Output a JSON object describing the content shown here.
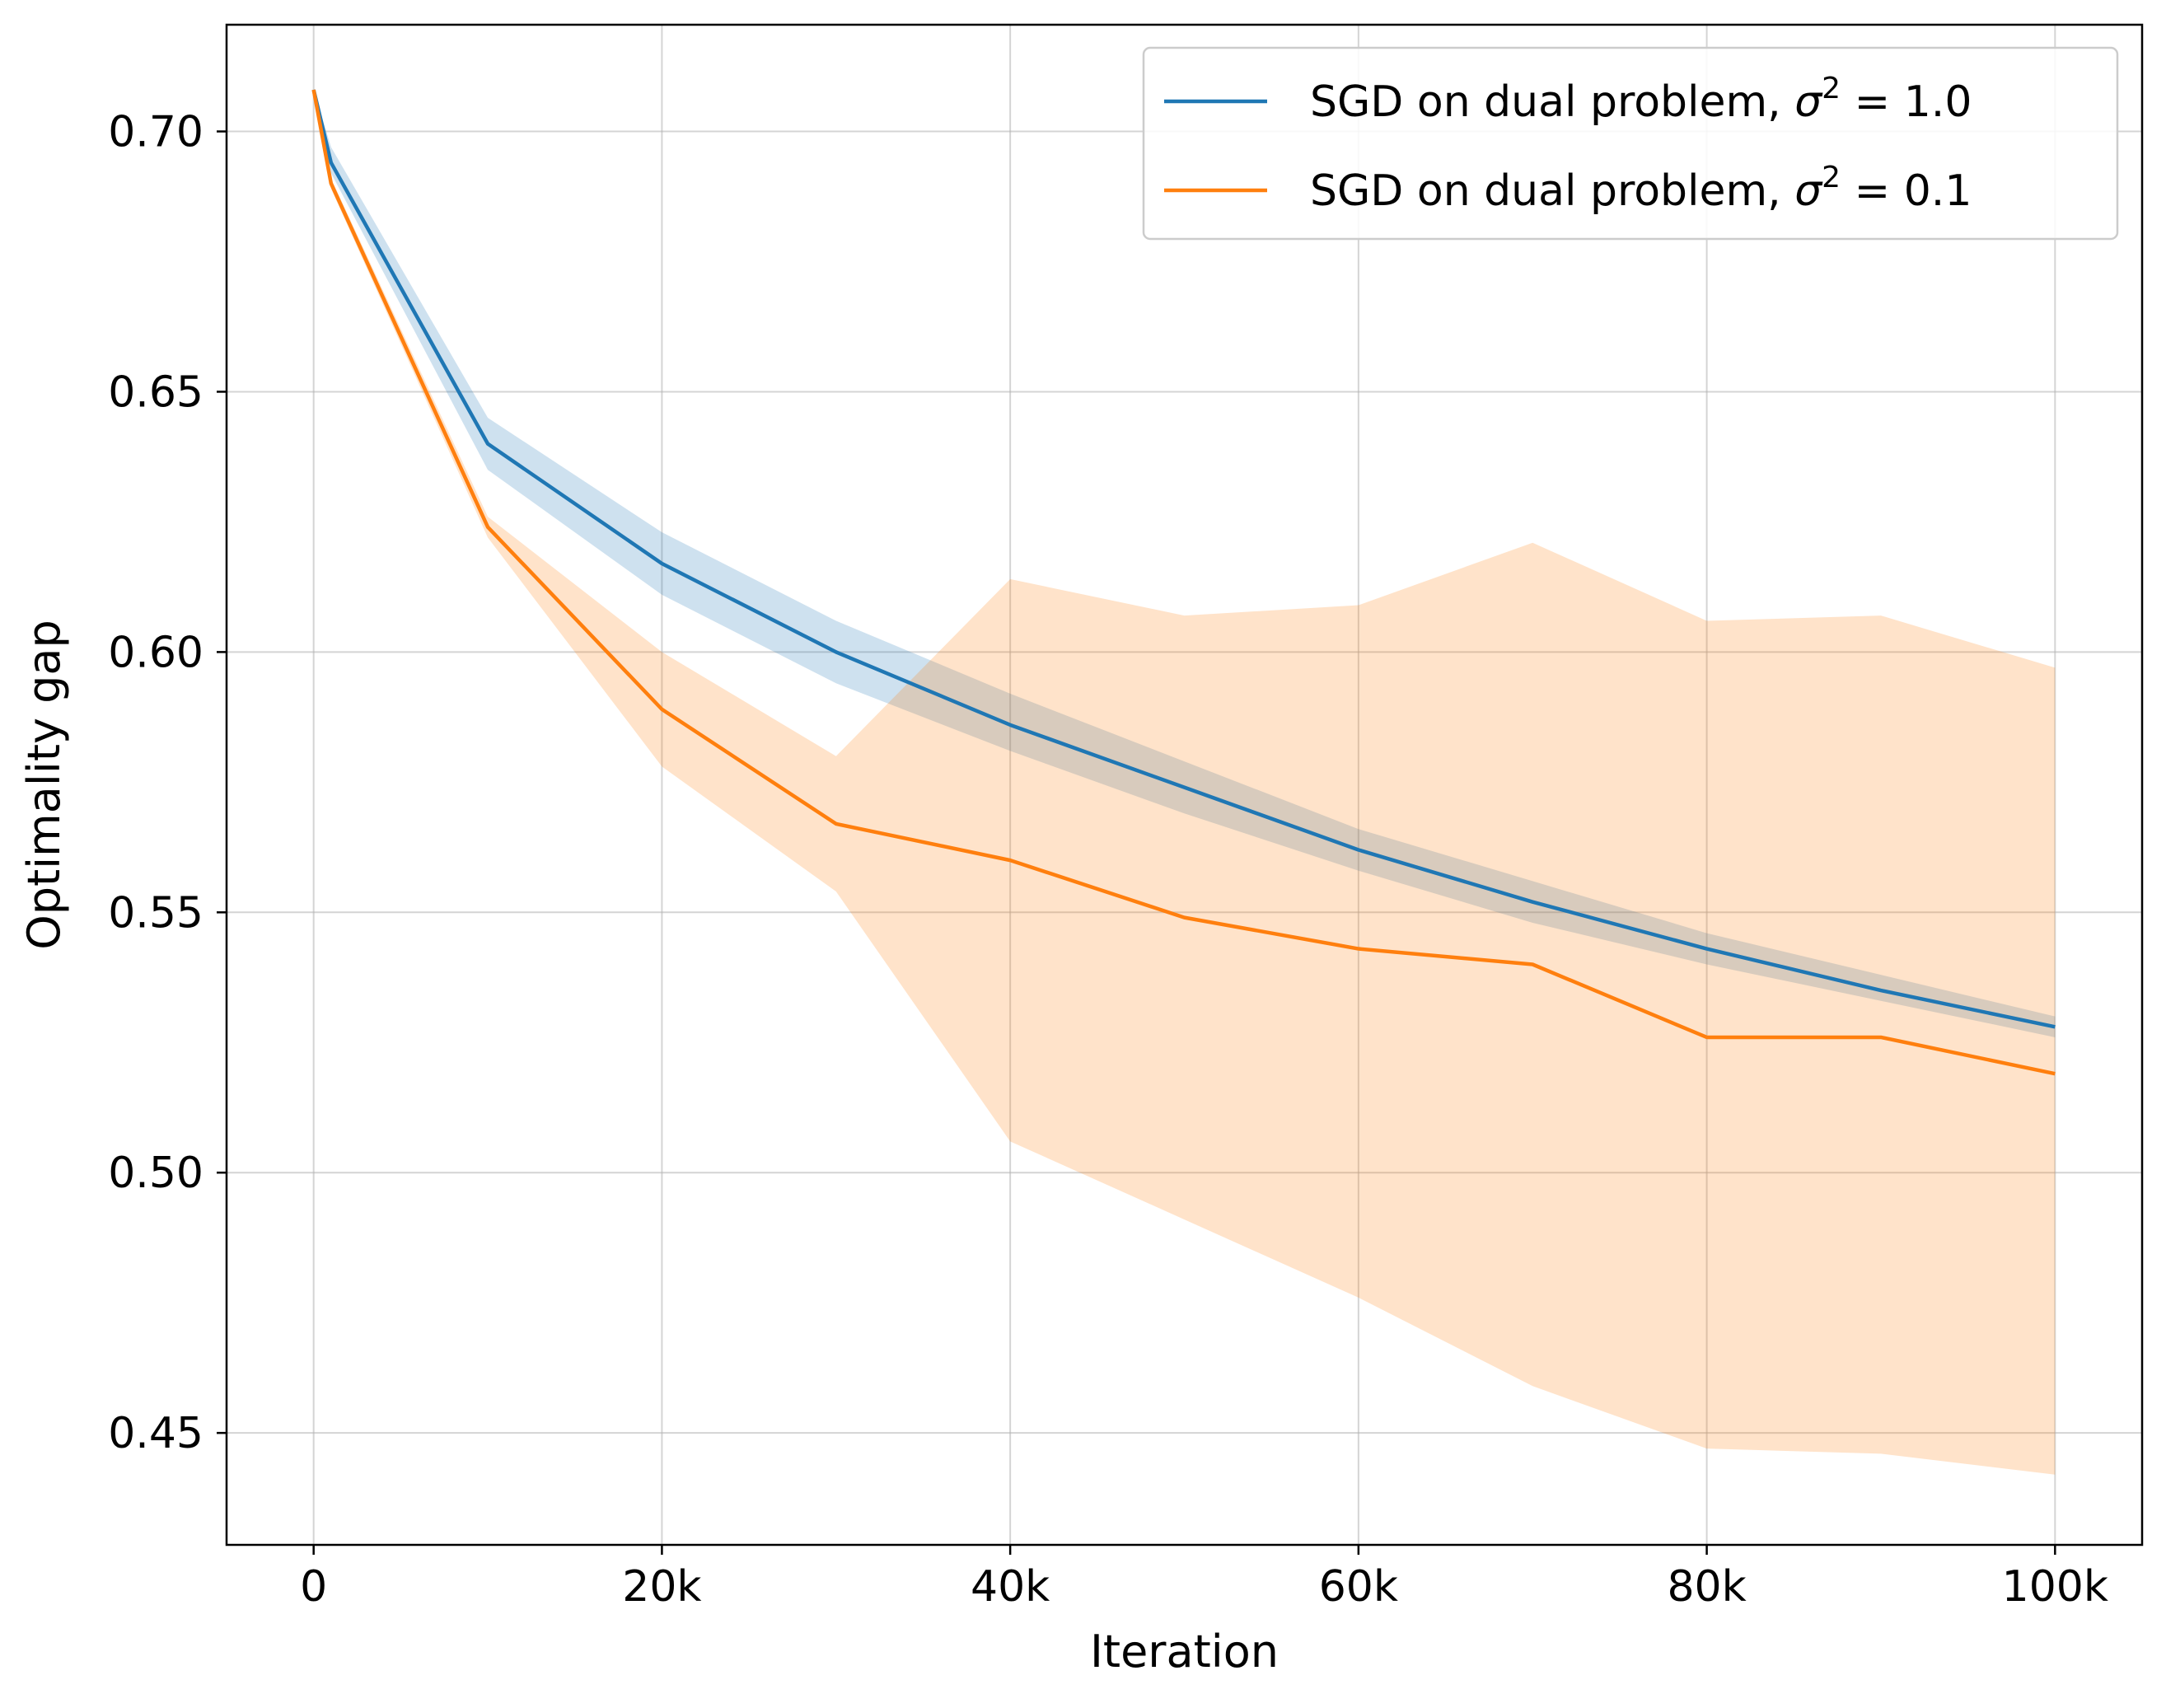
{
  "chart_data": {
    "type": "line",
    "xlabel": "Iteration",
    "ylabel": "Optimality gap",
    "xlim": [
      -5000,
      105000
    ],
    "ylim": [
      0.4285,
      0.7205
    ],
    "grid": true,
    "legend_position": "top-right",
    "x_ticks": [
      {
        "value": 0,
        "label": "0"
      },
      {
        "value": 20000,
        "label": "20k"
      },
      {
        "value": 40000,
        "label": "40k"
      },
      {
        "value": 60000,
        "label": "60k"
      },
      {
        "value": 80000,
        "label": "80k"
      },
      {
        "value": 100000,
        "label": "100k"
      }
    ],
    "y_ticks": [
      {
        "value": 0.45,
        "label": "0.45"
      },
      {
        "value": 0.5,
        "label": "0.50"
      },
      {
        "value": 0.55,
        "label": "0.55"
      },
      {
        "value": 0.6,
        "label": "0.60"
      },
      {
        "value": 0.65,
        "label": "0.65"
      },
      {
        "value": 0.7,
        "label": "0.70"
      }
    ],
    "x": [
      0,
      1000,
      10000,
      20000,
      30000,
      40000,
      50000,
      60000,
      70000,
      80000,
      90000,
      100000
    ],
    "series": [
      {
        "name": "SGD on dual problem, σ² = 1.0",
        "legend_prefix": "SGD on dual problem, ",
        "legend_var": "σ",
        "legend_exp": "2",
        "legend_suffix": " = 1.0",
        "color": "#1f77b4",
        "band_color": "#1f77b4",
        "values": [
          0.708,
          0.694,
          0.64,
          0.617,
          0.6,
          0.586,
          0.574,
          0.562,
          0.552,
          0.543,
          0.535,
          0.528
        ],
        "lower": [
          0.708,
          0.692,
          0.635,
          0.611,
          0.594,
          0.581,
          0.569,
          0.558,
          0.548,
          0.54,
          0.533,
          0.526
        ],
        "upper": [
          0.708,
          0.697,
          0.645,
          0.623,
          0.606,
          0.592,
          0.579,
          0.566,
          0.556,
          0.546,
          0.538,
          0.53
        ]
      },
      {
        "name": "SGD on dual problem, σ² = 0.1",
        "legend_prefix": "SGD on dual problem, ",
        "legend_var": "σ",
        "legend_exp": "2",
        "legend_suffix": " = 0.1",
        "color": "#ff7f0e",
        "band_color": "#ff7f0e",
        "values": [
          0.708,
          0.69,
          0.624,
          0.589,
          0.567,
          0.56,
          0.549,
          0.543,
          0.54,
          0.526,
          0.526,
          0.519
        ],
        "lower": [
          0.708,
          0.689,
          0.622,
          0.578,
          0.554,
          0.506,
          0.491,
          0.476,
          0.459,
          0.447,
          0.446,
          0.442
        ],
        "upper": [
          0.708,
          0.691,
          0.626,
          0.6,
          0.58,
          0.614,
          0.607,
          0.609,
          0.621,
          0.606,
          0.607,
          0.597
        ]
      }
    ]
  }
}
